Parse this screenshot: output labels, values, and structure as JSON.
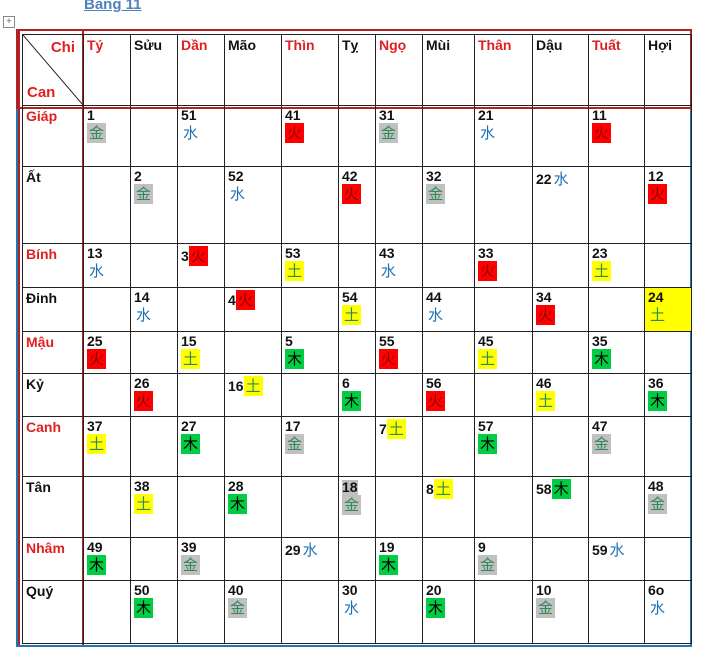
{
  "title": "Bảng 11",
  "corner": {
    "chi": "Chi",
    "can": "Can"
  },
  "element_colors": {
    "kim": "#c0c0c0",
    "thuy": "#1f6fb2",
    "hoa": "#ff0000",
    "tho": "#ffff00",
    "moc": "#00cc44"
  },
  "chi": [
    {
      "label": "Tý",
      "red": true
    },
    {
      "label": "Sửu",
      "red": false
    },
    {
      "label": "Dần",
      "red": true
    },
    {
      "label": "Mão",
      "red": false
    },
    {
      "label": "Thìn",
      "red": true
    },
    {
      "label": "Tỵ",
      "red": false
    },
    {
      "label": "Ngọ",
      "red": true
    },
    {
      "label": "Mùi",
      "red": false
    },
    {
      "label": "Thân",
      "red": true
    },
    {
      "label": "Dậu",
      "red": false
    },
    {
      "label": "Tuất",
      "red": true
    },
    {
      "label": "Hợi",
      "red": false
    }
  ],
  "rows": [
    {
      "can": "Giáp",
      "red": true,
      "cells": [
        {
          "n": "1",
          "el": "金",
          "t": "kim"
        },
        null,
        {
          "n": "51",
          "el": "水",
          "t": "thuy"
        },
        null,
        {
          "n": "41",
          "el": "火",
          "t": "hoa"
        },
        null,
        {
          "n": "31",
          "el": "金",
          "t": "kim"
        },
        null,
        {
          "n": "21",
          "el": "水",
          "t": "thuy"
        },
        null,
        {
          "n": "11",
          "el": "火",
          "t": "hoa"
        },
        null
      ]
    },
    {
      "can": "Ất",
      "red": false,
      "cells": [
        null,
        {
          "n": "2",
          "el": "金",
          "t": "kim"
        },
        null,
        {
          "n": "52",
          "el": "水",
          "t": "thuy"
        },
        null,
        {
          "n": "42",
          "el": "火",
          "t": "hoa"
        },
        null,
        {
          "n": "32",
          "el": "金",
          "t": "kim"
        },
        null,
        {
          "n": "22",
          "el": "水",
          "t": "thuy",
          "inline": true
        },
        null,
        {
          "n": "12",
          "el": "火",
          "t": "hoa"
        }
      ]
    },
    {
      "can": "Bính",
      "red": true,
      "cells": [
        {
          "n": "13",
          "el": "水",
          "t": "thuy"
        },
        null,
        {
          "n": "3",
          "el": "火",
          "t": "hoa",
          "inline": true
        },
        null,
        {
          "n": "53",
          "el": "土",
          "t": "tho"
        },
        null,
        {
          "n": "43",
          "el": "水",
          "t": "thuy"
        },
        null,
        {
          "n": "33",
          "el": "火",
          "t": "hoa"
        },
        null,
        {
          "n": "23",
          "el": "土",
          "t": "tho"
        },
        null
      ]
    },
    {
      "can": "Đinh",
      "red": false,
      "cells": [
        null,
        {
          "n": "14",
          "el": "水",
          "t": "thuy"
        },
        null,
        {
          "n": "4",
          "el": "火",
          "t": "hoa",
          "inline": true
        },
        null,
        {
          "n": "54",
          "el": "土",
          "t": "tho"
        },
        null,
        {
          "n": "44",
          "el": "水",
          "t": "thuy"
        },
        null,
        {
          "n": "34",
          "el": "火",
          "t": "hoa"
        },
        null,
        {
          "n": "24",
          "el": "土",
          "t": "tho",
          "fill": true
        }
      ]
    },
    {
      "can": "Mậu",
      "red": true,
      "cells": [
        {
          "n": "25",
          "el": "火",
          "t": "hoa"
        },
        null,
        {
          "n": "15",
          "el": "土",
          "t": "tho"
        },
        null,
        {
          "n": "5",
          "el": "木",
          "t": "moc"
        },
        null,
        {
          "n": "55",
          "el": "火",
          "t": "hoa"
        },
        null,
        {
          "n": "45",
          "el": "土",
          "t": "tho"
        },
        null,
        {
          "n": "35",
          "el": "木",
          "t": "moc"
        },
        null
      ]
    },
    {
      "can": "Kỷ",
      "red": false,
      "cells": [
        null,
        {
          "n": "26",
          "el": "火",
          "t": "hoa"
        },
        null,
        {
          "n": "16",
          "el": "土",
          "t": "tho",
          "inline": true
        },
        null,
        {
          "n": "6",
          "el": "木",
          "t": "moc"
        },
        null,
        {
          "n": "56",
          "el": "火",
          "t": "hoa"
        },
        null,
        {
          "n": "46",
          "el": "土",
          "t": "tho"
        },
        null,
        {
          "n": "36",
          "el": "木",
          "t": "moc"
        }
      ]
    },
    {
      "can": "Canh",
      "red": true,
      "cells": [
        {
          "n": "37",
          "el": "土",
          "t": "tho"
        },
        null,
        {
          "n": "27",
          "el": "木",
          "t": "moc"
        },
        null,
        {
          "n": "17",
          "el": "金",
          "t": "kim"
        },
        null,
        {
          "n": "7",
          "el": "土",
          "t": "tho",
          "inline": true
        },
        null,
        {
          "n": "57",
          "el": "木",
          "t": "moc"
        },
        null,
        {
          "n": "47",
          "el": "金",
          "t": "kim"
        },
        null
      ]
    },
    {
      "can": "Tân",
      "red": false,
      "cells": [
        null,
        {
          "n": "38",
          "el": "土",
          "t": "tho"
        },
        null,
        {
          "n": "28",
          "el": "木",
          "t": "moc"
        },
        null,
        {
          "n": "18",
          "el": "金",
          "t": "kim",
          "numbg": true
        },
        null,
        {
          "n": "8",
          "el": "土",
          "t": "tho",
          "inline": true
        },
        null,
        {
          "n": "58",
          "el": "木",
          "t": "moc",
          "inline": true
        },
        null,
        {
          "n": "48",
          "el": "金",
          "t": "kim"
        }
      ]
    },
    {
      "can": "Nhâm",
      "red": true,
      "cells": [
        {
          "n": "49",
          "el": "木",
          "t": "moc"
        },
        null,
        {
          "n": "39",
          "el": "金",
          "t": "kim"
        },
        null,
        {
          "n": "29",
          "el": "水",
          "t": "thuy",
          "inline": true
        },
        null,
        {
          "n": "19",
          "el": "木",
          "t": "moc"
        },
        null,
        {
          "n": "9",
          "el": "金",
          "t": "kim"
        },
        null,
        {
          "n": "59",
          "el": "水",
          "t": "thuy",
          "inline": true
        },
        null
      ]
    },
    {
      "can": "Quý",
      "red": false,
      "cells": [
        null,
        {
          "n": "50",
          "el": "木",
          "t": "moc"
        },
        null,
        {
          "n": "40",
          "el": "金",
          "t": "kim"
        },
        null,
        {
          "n": "30",
          "el": "水",
          "t": "thuy"
        },
        null,
        {
          "n": "20",
          "el": "木",
          "t": "moc"
        },
        null,
        {
          "n": "10",
          "el": "金",
          "t": "kim"
        },
        null,
        {
          "n": "6o",
          "el": "水",
          "t": "thuy"
        }
      ]
    }
  ]
}
